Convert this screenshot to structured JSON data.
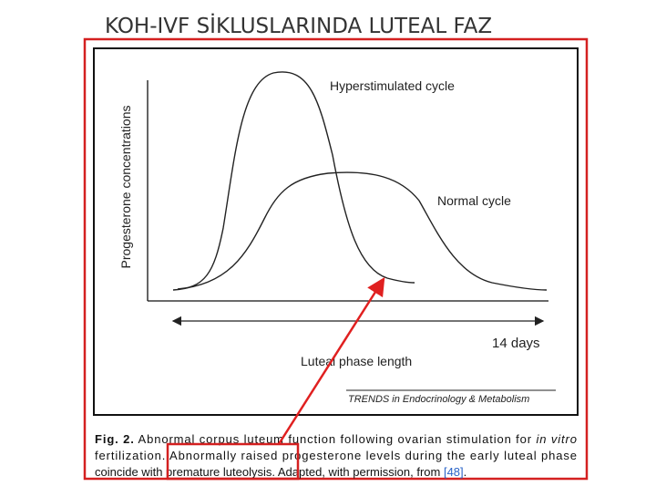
{
  "title": "KOH-IVF SİKLUSLARINDA LUTEAL FAZ",
  "figure": {
    "y_axis_label": "Progesterone concentrations",
    "curve_labels": [
      "Hyperstimulated cycle",
      "Normal cycle"
    ],
    "x_axis_note": "14 days",
    "x_axis_label": "Luteal phase length",
    "source": "TRENDS in Endocrinology & Metabolism"
  },
  "caption": {
    "lines": [
      [
        {
          "text": "Fig. 2.",
          "style": "bold"
        },
        {
          "text": " Abnormal corpus luteum function following ovarian stimulation for ",
          "style": "normal"
        },
        {
          "text": "in vitro",
          "style": "italic"
        }
      ],
      [
        {
          "text": "fertilization. Abnormally raised progesterone levels during the early luteal phase",
          "style": "normal"
        }
      ],
      [
        {
          "text": "coincide with premature luteolysis. Adapted, with permission, from ",
          "style": "normal"
        },
        {
          "text": "[48]",
          "style": "link"
        },
        {
          "text": ".",
          "style": "normal"
        }
      ]
    ]
  }
}
